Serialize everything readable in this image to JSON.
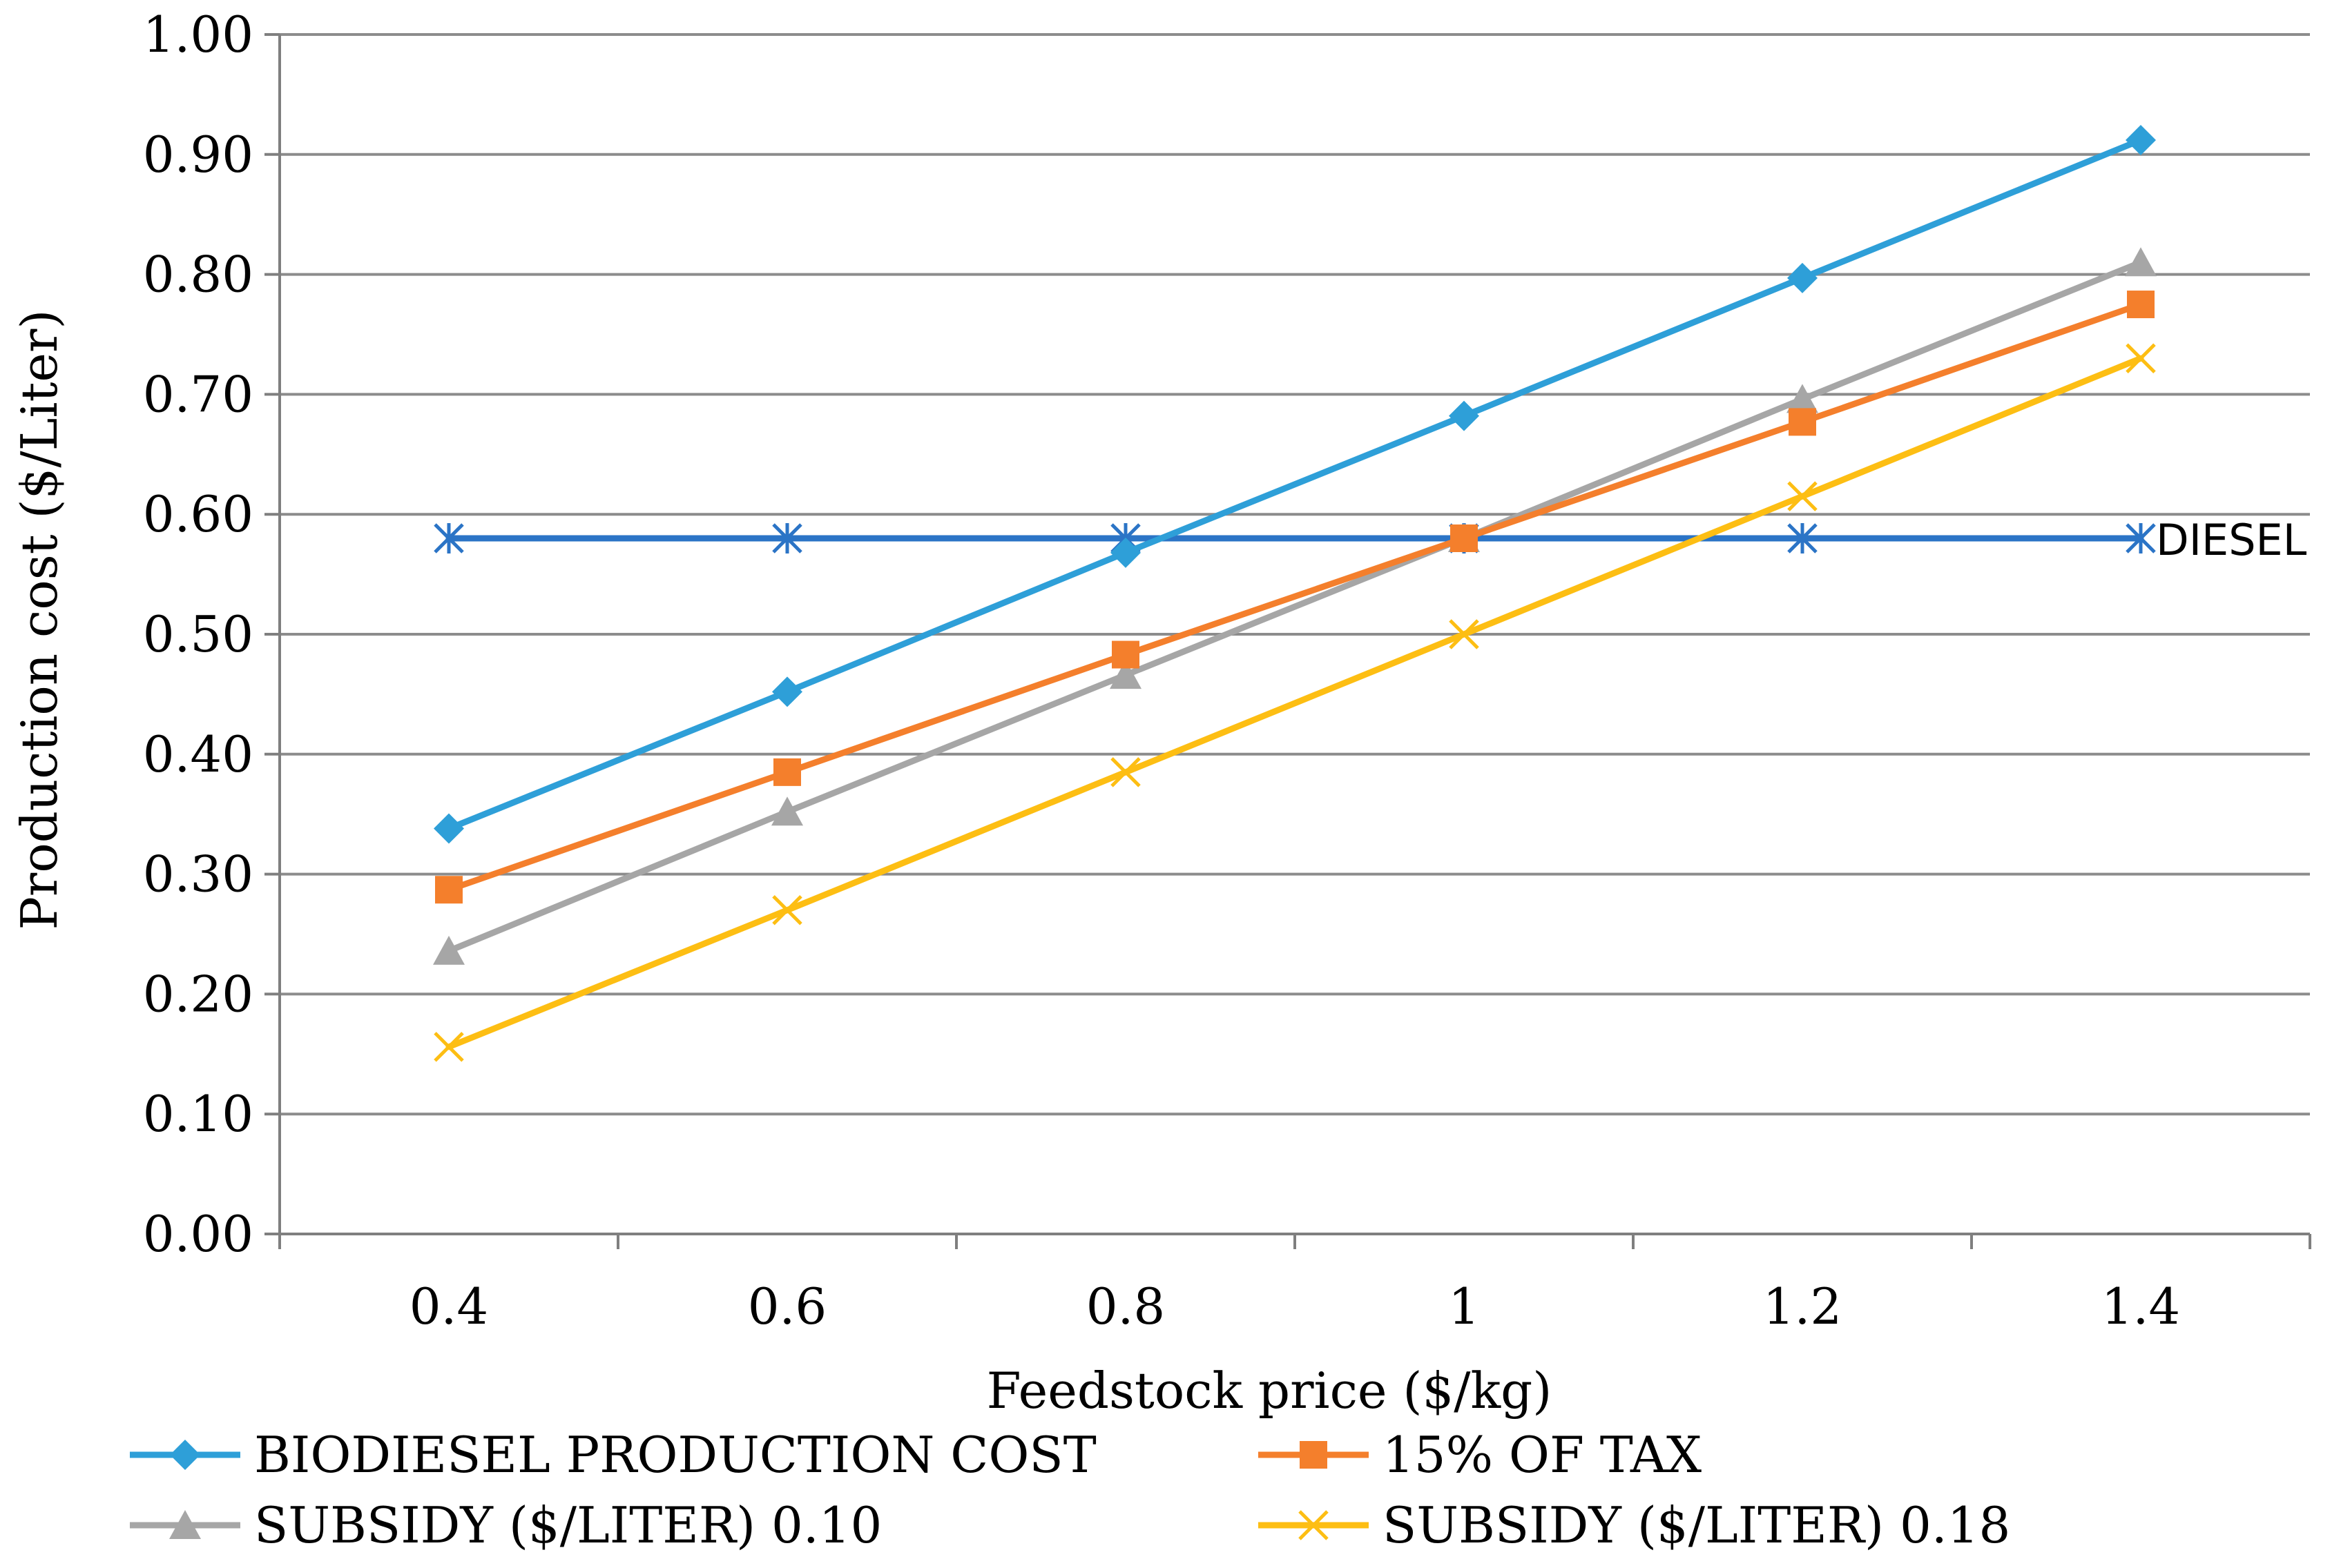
{
  "chart_data": {
    "type": "line",
    "title": "",
    "xlabel": "Feedstock  price ($/kg)",
    "ylabel": "Production cost ($/Liter)",
    "x": [
      0.4,
      0.6,
      0.8,
      1,
      1.2,
      1.4
    ],
    "x_tick_labels": [
      "0.4",
      "0.6",
      "0.8",
      "1",
      "1.2",
      "1.4"
    ],
    "ylim": [
      0,
      1
    ],
    "y_ticks": [
      0,
      0.1,
      0.2,
      0.3,
      0.4,
      0.5,
      0.6,
      0.7,
      0.8,
      0.9,
      1.0
    ],
    "y_tick_labels": [
      "0.00",
      "0.10",
      "0.20",
      "0.30",
      "0.40",
      "0.50",
      "0.60",
      "0.70",
      "0.80",
      "0.90",
      "1.00"
    ],
    "grid": true,
    "legend_position": "bottom",
    "series": [
      {
        "key": "biodiesel",
        "name": "BIODIESEL PRODUCTION COST",
        "color": "#2E9FD8",
        "marker": "diamond",
        "values": [
          0.338,
          0.452,
          0.568,
          0.682,
          0.797,
          0.912
        ]
      },
      {
        "key": "tax",
        "name": "15% OF TAX",
        "color": "#F47F2C",
        "marker": "square",
        "values": [
          0.287,
          0.385,
          0.483,
          0.58,
          0.677,
          0.775
        ]
      },
      {
        "key": "sub10",
        "name": "SUBSIDY ($/LITER) 0.10",
        "color": "#A6A6A6",
        "marker": "triangle",
        "values": [
          0.236,
          0.352,
          0.466,
          0.58,
          0.696,
          0.81
        ]
      },
      {
        "key": "sub18",
        "name": "SUBSIDY ($/LITER) 0.18",
        "color": "#FDBE13",
        "marker": "x",
        "values": [
          0.156,
          0.27,
          0.385,
          0.5,
          0.615,
          0.73
        ]
      },
      {
        "key": "diesel",
        "name": "DIESEL",
        "color": "#2B74C6",
        "marker": "asterisk",
        "values": [
          0.58,
          0.58,
          0.58,
          0.58,
          0.58,
          0.58
        ],
        "in_legend": false
      }
    ],
    "annotations": [
      {
        "text": "DIESEL",
        "attached_to": "diesel"
      }
    ]
  },
  "colors": {
    "grid": "#8C8C8C",
    "axis": "#7F7F7F",
    "text": "#000000"
  }
}
